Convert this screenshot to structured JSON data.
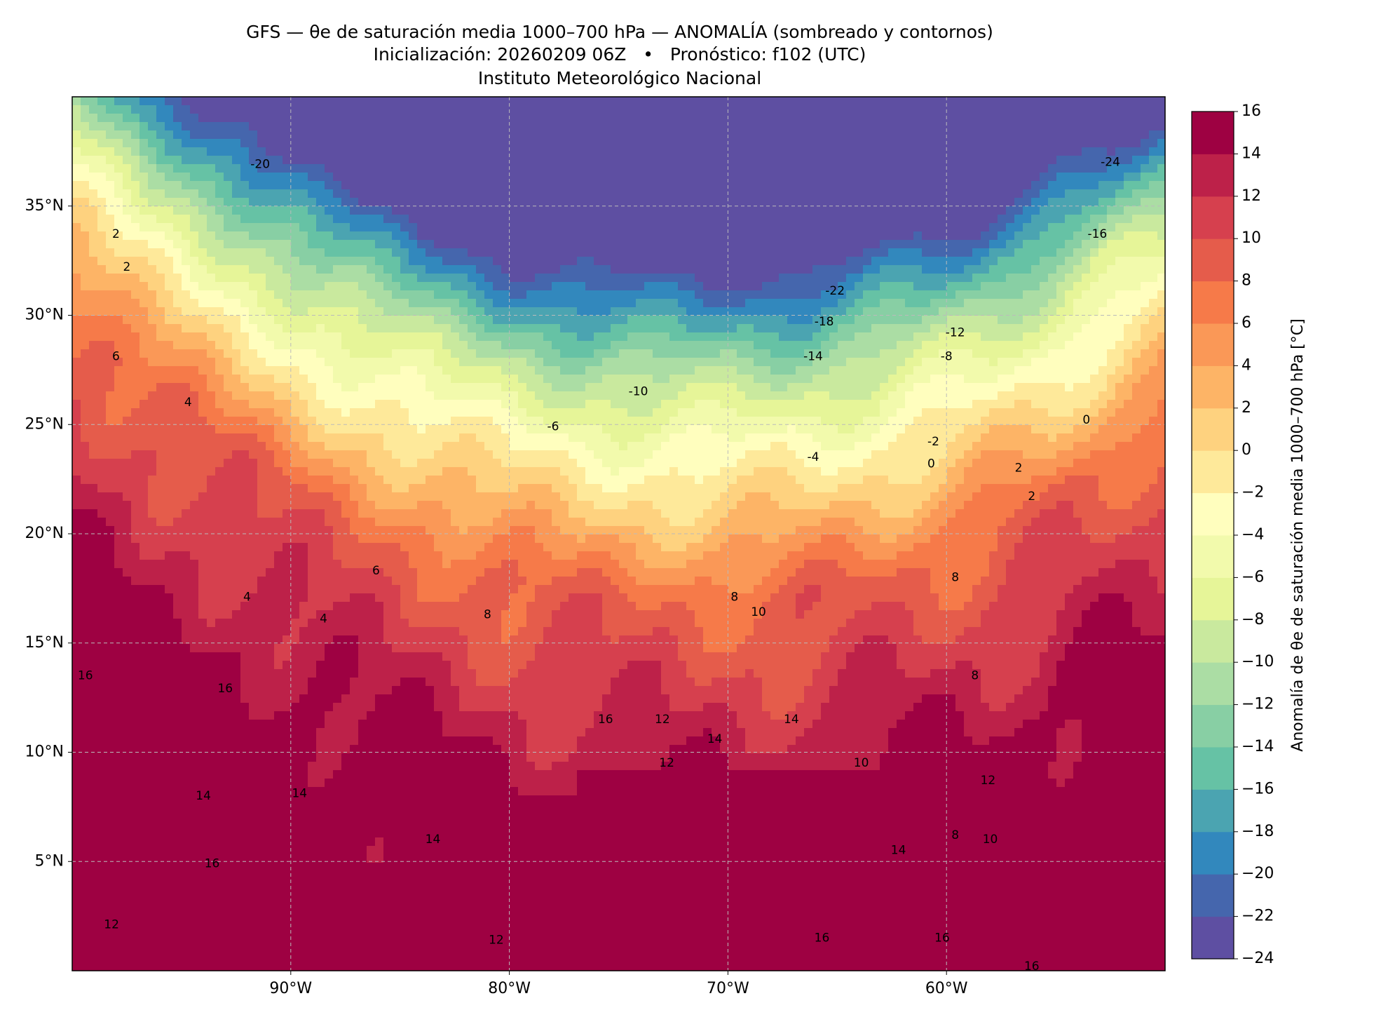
{
  "header": {
    "title": "GFS — θe de saturación media 1000–700 hPa — ANOMALÍA (sombreado y contornos)",
    "subtitle": "Inicialización: 20260209 06Z   •   Pronóstico: f102 (UTC)",
    "institution": "Instituto Meteorológico Nacional"
  },
  "map": {
    "lonlim": [
      -100,
      -50
    ],
    "latlim": [
      0,
      40
    ],
    "lon_ticks": [
      {
        "value": -90,
        "label": "90°W"
      },
      {
        "value": -80,
        "label": "80°W"
      },
      {
        "value": -70,
        "label": "70°W"
      },
      {
        "value": -60,
        "label": "60°W"
      }
    ],
    "lat_ticks": [
      {
        "value": 35,
        "label": "35°N"
      },
      {
        "value": 30,
        "label": "30°N"
      },
      {
        "value": 25,
        "label": "25°N"
      },
      {
        "value": 20,
        "label": "20°N"
      },
      {
        "value": 15,
        "label": "15°N"
      },
      {
        "value": 10,
        "label": "10°N"
      },
      {
        "value": 5,
        "label": "5°N"
      }
    ],
    "grid": true,
    "contour_labels": [
      -20,
      2,
      2,
      6,
      4,
      -24,
      -16,
      -22,
      -18,
      -12,
      -14,
      -8,
      -10,
      -6,
      0,
      -2,
      -4,
      0,
      2,
      2,
      6,
      8,
      8,
      10,
      8,
      4,
      4,
      8,
      16,
      16,
      16,
      12,
      14,
      14,
      12,
      10,
      12,
      14,
      14,
      14,
      8,
      10,
      14,
      16,
      12,
      12,
      16,
      16,
      16
    ]
  },
  "colorbar": {
    "label": "Anomalía de θe de saturación media 1000–700 hPa [°C]",
    "lim": [
      -24,
      16
    ],
    "ticks": [
      16,
      14,
      12,
      10,
      8,
      6,
      4,
      2,
      0,
      {
        "value": -2,
        "label": "−2"
      },
      {
        "value": -4,
        "label": "−4"
      },
      {
        "value": -6,
        "label": "−6"
      },
      {
        "value": -8,
        "label": "−8"
      },
      {
        "value": -10,
        "label": "−10"
      },
      {
        "value": -12,
        "label": "−12"
      },
      {
        "value": -14,
        "label": "−14"
      },
      {
        "value": -16,
        "label": "−16"
      },
      {
        "value": -18,
        "label": "−18"
      },
      {
        "value": -20,
        "label": "−20"
      },
      {
        "value": -22,
        "label": "−22"
      },
      {
        "value": -24,
        "label": "−24"
      }
    ],
    "colors": [
      "#5e4fa2",
      "#4566ad",
      "#3288bd",
      "#4ba4b1",
      "#66c2a5",
      "#88cfa4",
      "#abdda4",
      "#c9e99e",
      "#e6f598",
      "#f2faac",
      "#fffebe",
      "#fee99a",
      "#fed27f",
      "#fdb466",
      "#fa9857",
      "#f67a49",
      "#e55c4b",
      "#d6404e",
      "#bd2149",
      "#9e0142"
    ]
  }
}
